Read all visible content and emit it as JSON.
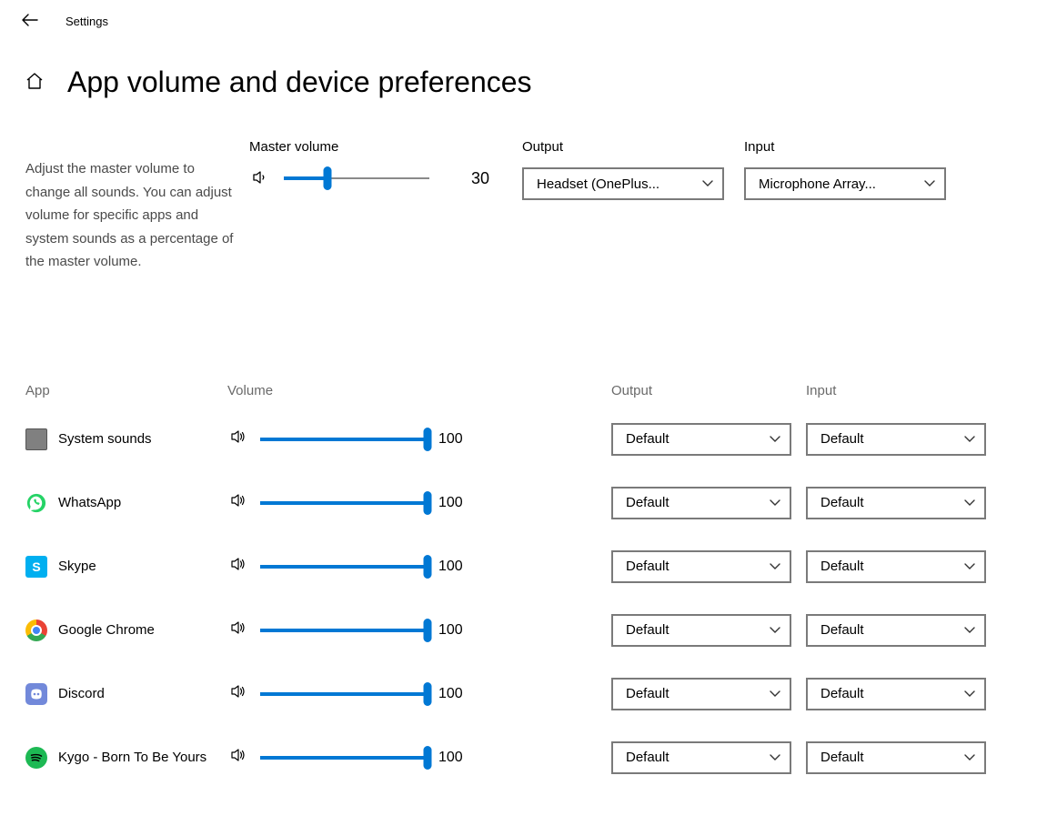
{
  "window_title": "Settings",
  "page_title": "App volume and device preferences",
  "description": "Adjust the master volume to change all sounds. You can adjust volume for specific apps and system sounds as a percentage of the master volume.",
  "master": {
    "label": "Master volume",
    "value": 30
  },
  "output": {
    "label": "Output",
    "selected": "Headset (OnePlus..."
  },
  "input": {
    "label": "Input",
    "selected": "Microphone Array..."
  },
  "columns": {
    "app": "App",
    "volume": "Volume",
    "output": "Output",
    "input": "Input"
  },
  "slider_color": "#0078d4",
  "apps": [
    {
      "name": "System sounds",
      "icon": "system",
      "volume": 100,
      "output": "Default",
      "input": "Default"
    },
    {
      "name": "WhatsApp",
      "icon": "whatsapp",
      "volume": 100,
      "output": "Default",
      "input": "Default"
    },
    {
      "name": "Skype",
      "icon": "skype",
      "volume": 100,
      "output": "Default",
      "input": "Default"
    },
    {
      "name": "Google Chrome",
      "icon": "chrome",
      "volume": 100,
      "output": "Default",
      "input": "Default"
    },
    {
      "name": "Discord",
      "icon": "discord",
      "volume": 100,
      "output": "Default",
      "input": "Default"
    },
    {
      "name": "Kygo - Born To Be Yours",
      "icon": "spotify",
      "volume": 100,
      "output": "Default",
      "input": "Default"
    }
  ]
}
